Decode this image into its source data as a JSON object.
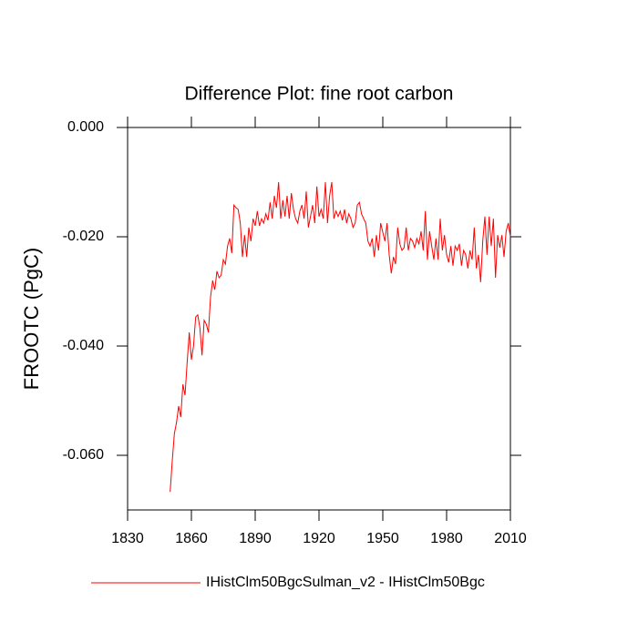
{
  "chart_data": {
    "type": "line",
    "title": "Difference Plot: fine root carbon",
    "y_label": "FROOTC  (PgC)",
    "xlim": [
      1830,
      2010
    ],
    "xticks": [
      1830,
      1860,
      1890,
      1920,
      1950,
      1980,
      2010
    ],
    "ylim": [
      -0.07,
      0
    ],
    "yticks": [
      {
        "value": 0,
        "label": "0.000"
      },
      {
        "value": -0.02,
        "label": "-0.020"
      },
      {
        "value": -0.04,
        "label": "-0.040"
      },
      {
        "value": -0.06,
        "label": "-0.060"
      }
    ],
    "x": [
      1850,
      1851,
      1852,
      1853,
      1854,
      1855,
      1856,
      1857,
      1858,
      1859,
      1860,
      1861,
      1862,
      1863,
      1864,
      1865,
      1866,
      1867,
      1868,
      1869,
      1870,
      1871,
      1872,
      1873,
      1874,
      1875,
      1876,
      1877,
      1878,
      1879,
      1880,
      1881,
      1882,
      1883,
      1884,
      1885,
      1886,
      1887,
      1888,
      1889,
      1890,
      1891,
      1892,
      1893,
      1894,
      1895,
      1896,
      1897,
      1898,
      1899,
      1900,
      1901,
      1902,
      1903,
      1904,
      1905,
      1906,
      1907,
      1908,
      1909,
      1910,
      1911,
      1912,
      1913,
      1914,
      1915,
      1916,
      1917,
      1918,
      1919,
      1920,
      1921,
      1922,
      1923,
      1924,
      1925,
      1926,
      1927,
      1928,
      1929,
      1930,
      1931,
      1932,
      1933,
      1934,
      1935,
      1936,
      1937,
      1938,
      1939,
      1940,
      1941,
      1942,
      1943,
      1944,
      1945,
      1946,
      1947,
      1948,
      1949,
      1950,
      1951,
      1952,
      1953,
      1954,
      1955,
      1956,
      1957,
      1958,
      1959,
      1960,
      1961,
      1962,
      1963,
      1964,
      1965,
      1966,
      1967,
      1968,
      1969,
      1970,
      1971,
      1972,
      1973,
      1974,
      1975,
      1976,
      1977,
      1978,
      1979,
      1980,
      1981,
      1982,
      1983,
      1984,
      1985,
      1986,
      1987,
      1988,
      1989,
      1990,
      1991,
      1992,
      1993,
      1994,
      1995,
      1996,
      1997,
      1998,
      1999,
      2000,
      2001,
      2002,
      2003,
      2004,
      2005,
      2006,
      2007,
      2008,
      2009,
      2010
    ],
    "series": [
      {
        "name": "IHistClm50BgcSulman_v2 - IHistClm50Bgc",
        "color": "#ff0000",
        "values": [
          -0.0667,
          -0.061,
          -0.056,
          -0.054,
          -0.051,
          -0.053,
          -0.047,
          -0.049,
          -0.043,
          -0.0375,
          -0.0425,
          -0.04,
          -0.0347,
          -0.0343,
          -0.0367,
          -0.0417,
          -0.0353,
          -0.036,
          -0.0375,
          -0.031,
          -0.028,
          -0.0297,
          -0.0263,
          -0.0275,
          -0.027,
          -0.0242,
          -0.025,
          -0.0217,
          -0.0203,
          -0.023,
          -0.0142,
          -0.0147,
          -0.015,
          -0.0175,
          -0.0237,
          -0.0197,
          -0.0237,
          -0.0183,
          -0.0208,
          -0.0167,
          -0.018,
          -0.0153,
          -0.018,
          -0.0167,
          -0.0175,
          -0.0158,
          -0.017,
          -0.0137,
          -0.0167,
          -0.0125,
          -0.0147,
          -0.01,
          -0.0167,
          -0.0133,
          -0.0163,
          -0.0125,
          -0.0167,
          -0.012,
          -0.015,
          -0.0167,
          -0.0175,
          -0.0153,
          -0.0142,
          -0.0167,
          -0.0117,
          -0.0183,
          -0.0163,
          -0.0142,
          -0.0175,
          -0.0108,
          -0.0163,
          -0.015,
          -0.0167,
          -0.01,
          -0.0175,
          -0.0125,
          -0.01,
          -0.0167,
          -0.0153,
          -0.0163,
          -0.0153,
          -0.017,
          -0.015,
          -0.0175,
          -0.0158,
          -0.0167,
          -0.0183,
          -0.0175,
          -0.0142,
          -0.0137,
          -0.0158,
          -0.0167,
          -0.0175,
          -0.0208,
          -0.0217,
          -0.0203,
          -0.0237,
          -0.0197,
          -0.0225,
          -0.0175,
          -0.0192,
          -0.0208,
          -0.0175,
          -0.0233,
          -0.0267,
          -0.0237,
          -0.025,
          -0.0183,
          -0.0213,
          -0.0225,
          -0.022,
          -0.0183,
          -0.0225,
          -0.0203,
          -0.0208,
          -0.022,
          -0.0203,
          -0.0213,
          -0.019,
          -0.0225,
          -0.0153,
          -0.0242,
          -0.019,
          -0.0217,
          -0.0242,
          -0.0203,
          -0.0242,
          -0.0167,
          -0.0225,
          -0.0197,
          -0.0233,
          -0.0247,
          -0.0217,
          -0.0253,
          -0.0217,
          -0.0225,
          -0.0213,
          -0.0253,
          -0.0225,
          -0.0233,
          -0.0258,
          -0.0225,
          -0.0242,
          -0.0183,
          -0.0258,
          -0.0233,
          -0.0283,
          -0.0208,
          -0.0163,
          -0.0233,
          -0.0163,
          -0.0217,
          -0.0167,
          -0.0275,
          -0.0197,
          -0.022,
          -0.0197,
          -0.0237,
          -0.019,
          -0.0175,
          -0.02
        ]
      }
    ]
  }
}
